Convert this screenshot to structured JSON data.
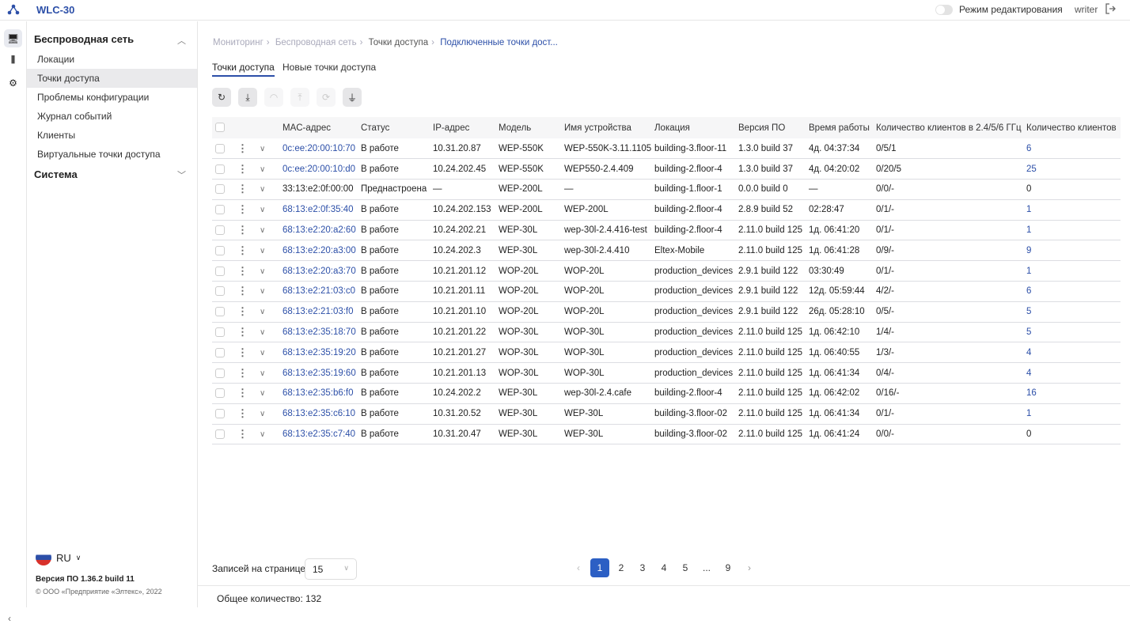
{
  "header": {
    "app_title": "WLC-30",
    "edit_mode_label": "Режим редактирования",
    "edit_mode_on": false,
    "user": "writer",
    "accent": "#2c4fa8"
  },
  "sidebar": {
    "sections": [
      {
        "label": "Беспроводная сеть",
        "expanded": true,
        "items": [
          {
            "label": "Локации"
          },
          {
            "label": "Точки доступа",
            "active": true
          },
          {
            "label": "Проблемы конфигурации"
          },
          {
            "label": "Журнал событий"
          },
          {
            "label": "Клиенты"
          },
          {
            "label": "Виртуальные точки доступа"
          }
        ]
      },
      {
        "label": "Система",
        "expanded": false
      }
    ],
    "lang": "RU",
    "version": "Версия ПО 1.36.2 build 11",
    "copyright": "© ООО «Предприятие «Элтекс», 2022"
  },
  "breadcrumb": [
    "Мониторинг",
    "Беспроводная сеть",
    "Точки доступа",
    "Подключенные точки дост..."
  ],
  "tabs": [
    {
      "label": "Точки доступа",
      "active": true
    },
    {
      "label": "Новые точки доступа"
    }
  ],
  "toolbar": [
    "refresh-icon",
    "download-icon",
    "wifi-icon",
    "upload-icon",
    "sync-icon",
    "filter-icon"
  ],
  "table": {
    "columns": [
      "MAC-адрес",
      "Статус",
      "IP-адрес",
      "Модель",
      "Имя устройства",
      "Локация",
      "Версия ПО",
      "Время работы",
      "Количество клиентов в 2.4/5/6 ГГц",
      "Количество клиентов"
    ],
    "rows": [
      [
        "0c:ee:20:00:10:70",
        "В работе",
        "10.31.20.87",
        "WEP-550K",
        "WEP-550K-3.11.1105",
        "building-3.floor-11",
        "1.3.0 build 37",
        "4д. 04:37:34",
        "0/5/1",
        "6"
      ],
      [
        "0c:ee:20:00:10:d0",
        "В работе",
        "10.24.202.45",
        "WEP-550K",
        "WEP550-2.4.409",
        "building-2.floor-4",
        "1.3.0 build 37",
        "4д. 04:20:02",
        "0/20/5",
        "25"
      ],
      [
        "33:13:e2:0f:00:00",
        "Преднастроена",
        "—",
        "WEP-200L",
        "—",
        "building-1.floor-1",
        "0.0.0 build 0",
        "—",
        "0/0/-",
        "0"
      ],
      [
        "68:13:e2:0f:35:40",
        "В работе",
        "10.24.202.153",
        "WEP-200L",
        "WEP-200L",
        "building-2.floor-4",
        "2.8.9 build 52",
        "02:28:47",
        "0/1/-",
        "1"
      ],
      [
        "68:13:e2:20:a2:60",
        "В работе",
        "10.24.202.21",
        "WEP-30L",
        "wep-30l-2.4.416-test",
        "building-2.floor-4",
        "2.11.0 build 125",
        "1д. 06:41:20",
        "0/1/-",
        "1"
      ],
      [
        "68:13:e2:20:a3:00",
        "В работе",
        "10.24.202.3",
        "WEP-30L",
        "wep-30l-2.4.410",
        "Eltex-Mobile",
        "2.11.0 build 125",
        "1д. 06:41:28",
        "0/9/-",
        "9"
      ],
      [
        "68:13:e2:20:a3:70",
        "В работе",
        "10.21.201.12",
        "WOP-20L",
        "WOP-20L",
        "production_devices",
        "2.9.1 build 122",
        "03:30:49",
        "0/1/-",
        "1"
      ],
      [
        "68:13:e2:21:03:c0",
        "В работе",
        "10.21.201.11",
        "WOP-20L",
        "WOP-20L",
        "production_devices",
        "2.9.1 build 122",
        "12д. 05:59:44",
        "4/2/-",
        "6"
      ],
      [
        "68:13:e2:21:03:f0",
        "В работе",
        "10.21.201.10",
        "WOP-20L",
        "WOP-20L",
        "production_devices",
        "2.9.1 build 122",
        "26д. 05:28:10",
        "0/5/-",
        "5"
      ],
      [
        "68:13:e2:35:18:70",
        "В работе",
        "10.21.201.22",
        "WOP-30L",
        "WOP-30L",
        "production_devices",
        "2.11.0 build 125",
        "1д. 06:42:10",
        "1/4/-",
        "5"
      ],
      [
        "68:13:e2:35:19:20",
        "В работе",
        "10.21.201.27",
        "WOP-30L",
        "WOP-30L",
        "production_devices",
        "2.11.0 build 125",
        "1д. 06:40:55",
        "1/3/-",
        "4"
      ],
      [
        "68:13:e2:35:19:60",
        "В работе",
        "10.21.201.13",
        "WOP-30L",
        "WOP-30L",
        "production_devices",
        "2.11.0 build 125",
        "1д. 06:41:34",
        "0/4/-",
        "4"
      ],
      [
        "68:13:e2:35:b6:f0",
        "В работе",
        "10.24.202.2",
        "WEP-30L",
        "wep-30l-2.4.cafe",
        "building-2.floor-4",
        "2.11.0 build 125",
        "1д. 06:42:02",
        "0/16/-",
        "16"
      ],
      [
        "68:13:e2:35:c6:10",
        "В работе",
        "10.31.20.52",
        "WEP-30L",
        "WEP-30L",
        "building-3.floor-02",
        "2.11.0 build 125",
        "1д. 06:41:34",
        "0/1/-",
        "1"
      ],
      [
        "68:13:e2:35:c7:40",
        "В работе",
        "10.31.20.47",
        "WEP-30L",
        "WEP-30L",
        "building-3.floor-02",
        "2.11.0 build 125",
        "1д. 06:41:24",
        "0/0/-",
        "0"
      ]
    ]
  },
  "pagination": {
    "per_page_label": "Записей на странице",
    "per_page": "15",
    "pages": [
      "1",
      "2",
      "3",
      "4",
      "5",
      "...",
      "9"
    ],
    "current": "1"
  },
  "footer": {
    "total": "Общее количество: 132"
  }
}
